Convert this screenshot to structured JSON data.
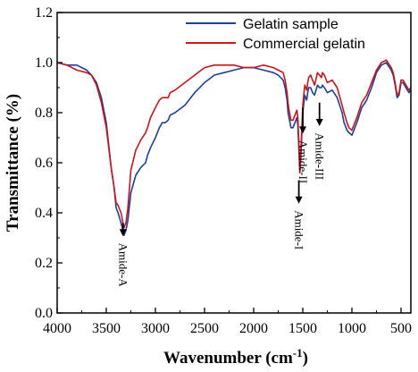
{
  "chart_data": {
    "type": "line",
    "title": "",
    "xlabel": "Wavenumber (cm",
    "xlabel_sup": "-1",
    "xlabel_close": ")",
    "ylabel": "Transmittance (%)",
    "xlim": [
      4000,
      400
    ],
    "ylim": [
      0.0,
      1.2
    ],
    "x_reversed": true,
    "grid": false,
    "legend_position": "top-right",
    "x_ticks": [
      4000,
      3500,
      3000,
      2500,
      2000,
      1500,
      1000,
      500
    ],
    "x_tick_labels": [
      "4000",
      "3500",
      "3000",
      "2500",
      "2000",
      "1500",
      "1000",
      "500"
    ],
    "y_ticks": [
      0.0,
      0.2,
      0.4,
      0.6,
      0.8,
      1.0,
      1.2
    ],
    "y_tick_labels": [
      "0.0",
      "0.2",
      "0.4",
      "0.6",
      "0.8",
      "1.0",
      "1.2"
    ],
    "series": [
      {
        "name": "Gelatin sample",
        "color": "#1f3f99",
        "x": [
          4000,
          3900,
          3800,
          3700,
          3650,
          3600,
          3550,
          3500,
          3450,
          3420,
          3400,
          3380,
          3350,
          3320,
          3300,
          3280,
          3250,
          3200,
          3150,
          3100,
          3080,
          3050,
          3000,
          2960,
          2930,
          2900,
          2870,
          2850,
          2800,
          2700,
          2600,
          2500,
          2400,
          2300,
          2200,
          2100,
          2000,
          1900,
          1800,
          1750,
          1700,
          1680,
          1660,
          1650,
          1640,
          1630,
          1620,
          1600,
          1580,
          1560,
          1550,
          1540,
          1530,
          1520,
          1500,
          1480,
          1460,
          1450,
          1440,
          1420,
          1400,
          1380,
          1350,
          1330,
          1310,
          1300,
          1280,
          1250,
          1200,
          1150,
          1100,
          1080,
          1050,
          1030,
          1000,
          950,
          900,
          850,
          800,
          750,
          700,
          650,
          600,
          580,
          560,
          540,
          520,
          500,
          480,
          450,
          420,
          400
        ],
        "values": [
          1.0,
          0.99,
          0.99,
          0.97,
          0.95,
          0.92,
          0.86,
          0.76,
          0.58,
          0.5,
          0.42,
          0.4,
          0.36,
          0.31,
          0.33,
          0.37,
          0.48,
          0.55,
          0.58,
          0.6,
          0.63,
          0.66,
          0.7,
          0.74,
          0.76,
          0.76,
          0.77,
          0.79,
          0.8,
          0.83,
          0.88,
          0.92,
          0.95,
          0.96,
          0.97,
          0.98,
          0.98,
          0.97,
          0.96,
          0.95,
          0.93,
          0.9,
          0.85,
          0.8,
          0.78,
          0.76,
          0.74,
          0.74,
          0.76,
          0.78,
          0.75,
          0.65,
          0.56,
          0.62,
          0.8,
          0.87,
          0.85,
          0.88,
          0.9,
          0.9,
          0.88,
          0.87,
          0.91,
          0.9,
          0.9,
          0.91,
          0.9,
          0.88,
          0.89,
          0.86,
          0.8,
          0.76,
          0.73,
          0.72,
          0.71,
          0.76,
          0.82,
          0.85,
          0.9,
          0.96,
          0.99,
          1.0,
          0.97,
          0.95,
          0.91,
          0.86,
          0.87,
          0.92,
          0.92,
          0.9,
          0.88,
          0.89
        ]
      },
      {
        "name": "Commercial gelatin",
        "color": "#c8161d",
        "x": [
          4000,
          3900,
          3800,
          3700,
          3650,
          3600,
          3550,
          3500,
          3450,
          3420,
          3400,
          3380,
          3350,
          3320,
          3300,
          3280,
          3250,
          3200,
          3150,
          3100,
          3080,
          3050,
          3000,
          2960,
          2930,
          2900,
          2870,
          2850,
          2800,
          2700,
          2600,
          2500,
          2400,
          2300,
          2200,
          2100,
          2000,
          1900,
          1800,
          1750,
          1700,
          1680,
          1660,
          1650,
          1640,
          1630,
          1620,
          1600,
          1580,
          1560,
          1550,
          1540,
          1530,
          1520,
          1500,
          1480,
          1460,
          1450,
          1440,
          1420,
          1400,
          1380,
          1350,
          1330,
          1310,
          1300,
          1280,
          1250,
          1200,
          1150,
          1100,
          1080,
          1050,
          1030,
          1000,
          950,
          900,
          850,
          800,
          750,
          700,
          650,
          600,
          580,
          560,
          540,
          520,
          500,
          480,
          450,
          420,
          400
        ],
        "values": [
          1.0,
          0.99,
          0.97,
          0.96,
          0.95,
          0.91,
          0.84,
          0.74,
          0.58,
          0.5,
          0.44,
          0.43,
          0.4,
          0.34,
          0.36,
          0.42,
          0.57,
          0.65,
          0.69,
          0.72,
          0.74,
          0.78,
          0.82,
          0.85,
          0.86,
          0.86,
          0.86,
          0.88,
          0.89,
          0.92,
          0.95,
          0.98,
          0.99,
          0.99,
          0.99,
          0.98,
          0.98,
          0.99,
          0.98,
          0.97,
          0.96,
          0.93,
          0.88,
          0.84,
          0.81,
          0.79,
          0.77,
          0.77,
          0.79,
          0.81,
          0.78,
          0.68,
          0.56,
          0.64,
          0.83,
          0.91,
          0.89,
          0.92,
          0.94,
          0.95,
          0.93,
          0.91,
          0.96,
          0.95,
          0.94,
          0.96,
          0.95,
          0.92,
          0.93,
          0.9,
          0.83,
          0.8,
          0.76,
          0.74,
          0.73,
          0.78,
          0.84,
          0.87,
          0.92,
          0.97,
          1.0,
          1.01,
          0.98,
          0.96,
          0.92,
          0.87,
          0.88,
          0.93,
          0.93,
          0.91,
          0.89,
          0.9
        ]
      }
    ],
    "annotations": [
      {
        "label": "Amide-A",
        "x": 3330,
        "arrow_from_y": 0.36,
        "arrow_to_y": 0.31,
        "text_y": 0.28
      },
      {
        "label": "Amide-I",
        "x": 1540,
        "arrow_from_y": 0.53,
        "arrow_to_y": 0.44,
        "text_y": 0.41
      },
      {
        "label": "Amide-II",
        "x": 1500,
        "arrow_from_y": 0.82,
        "arrow_to_y": 0.72,
        "text_y": 0.69
      },
      {
        "label": "Amide-III",
        "x": 1330,
        "arrow_from_y": 0.84,
        "arrow_to_y": 0.75,
        "text_y": 0.72
      }
    ]
  }
}
